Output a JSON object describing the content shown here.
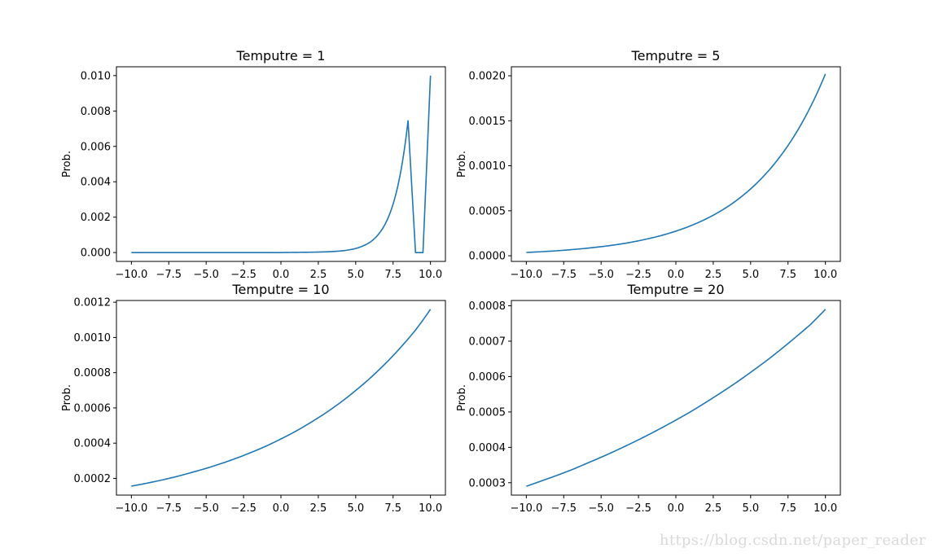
{
  "watermark": "https://blog.csdn.net/paper_reader",
  "chart_data": [
    {
      "type": "line",
      "title": "Temputre = 1",
      "xlabel": "",
      "ylabel": "Prob.",
      "xlim": [
        -11.0,
        11.0
      ],
      "ylim": [
        -0.0005,
        0.0105
      ],
      "xticks": [
        -10.0,
        -7.5,
        -5.0,
        -2.5,
        0.0,
        2.5,
        5.0,
        7.5,
        10.0
      ],
      "xtick_labels": [
        "−10.0",
        "−7.5",
        "−5.0",
        "−2.5",
        "0.0",
        "2.5",
        "5.0",
        "7.5",
        "10.0"
      ],
      "yticks": [
        0.0,
        0.002,
        0.004,
        0.006,
        0.008,
        0.01
      ],
      "ytick_labels": [
        "0.000",
        "0.002",
        "0.004",
        "0.006",
        "0.008",
        "0.010"
      ],
      "grid": false,
      "series": [
        {
          "color": "#1f77b4",
          "x": [
            -10,
            -9,
            -8,
            -7,
            -6,
            -5,
            -4,
            -3,
            -2,
            -1,
            0,
            1,
            2,
            3,
            4,
            5,
            5.5,
            6,
            6.5,
            7,
            7.5,
            8,
            8.5,
            9,
            9.5,
            10
          ],
          "y": [
            0.0,
            0.0,
            0.0,
            0.0,
            0.0,
            0.0,
            0.0,
            0.0,
            0.0,
            0.0,
            0.0,
            1e-05,
            2e-05,
            4e-05,
            9e-05,
            0.00023,
            0.00038,
            0.00061,
            0.00101,
            0.00166,
            0.00274,
            0.00452,
            0.00745,
            0.0,
            0.0,
            0.01
          ]
        }
      ]
    },
    {
      "type": "line",
      "title": "Temputre = 5",
      "xlabel": "",
      "ylabel": "Prob.",
      "xlim": [
        -11.0,
        11.0
      ],
      "ylim": [
        -6.25e-05,
        0.0021
      ],
      "xticks": [
        -10.0,
        -7.5,
        -5.0,
        -2.5,
        0.0,
        2.5,
        5.0,
        7.5,
        10.0
      ],
      "xtick_labels": [
        "−10.0",
        "−7.5",
        "−5.0",
        "−2.5",
        "0.0",
        "2.5",
        "5.0",
        "7.5",
        "10.0"
      ],
      "yticks": [
        0.0,
        0.0005,
        0.001,
        0.0015,
        0.002
      ],
      "ytick_labels": [
        "0.0000",
        "0.0005",
        "0.0010",
        "0.0015",
        "0.0020"
      ],
      "grid": false,
      "series": [
        {
          "color": "#1f77b4",
          "x": [
            -10,
            -9,
            -8,
            -7,
            -6,
            -5,
            -4,
            -3,
            -2,
            -1,
            0,
            1,
            2,
            3,
            4,
            5,
            6,
            7,
            8,
            9,
            10
          ],
          "y": [
            3.7e-05,
            4.5e-05,
            5.5e-05,
            6.8e-05,
            8.3e-05,
            0.000101,
            0.000123,
            0.00015,
            0.000184,
            0.000224,
            0.000274,
            0.000334,
            0.000408,
            0.000498,
            0.000608,
            0.000743,
            0.000908,
            0.001109,
            0.001354,
            0.001654,
            0.00202
          ]
        }
      ]
    },
    {
      "type": "line",
      "title": "Temputre = 10",
      "xlabel": "",
      "ylabel": "Prob.",
      "xlim": [
        -11.0,
        11.0
      ],
      "ylim": [
        0.000105,
        0.00121
      ],
      "xticks": [
        -10.0,
        -7.5,
        -5.0,
        -2.5,
        0.0,
        2.5,
        5.0,
        7.5,
        10.0
      ],
      "xtick_labels": [
        "−10.0",
        "−7.5",
        "−5.0",
        "−2.5",
        "0.0",
        "2.5",
        "5.0",
        "7.5",
        "10.0"
      ],
      "yticks": [
        0.0002,
        0.0004,
        0.0006,
        0.0008,
        0.001,
        0.0012
      ],
      "ytick_labels": [
        "0.0002",
        "0.0004",
        "0.0006",
        "0.0008",
        "0.0010",
        "0.0012"
      ],
      "grid": false,
      "series": [
        {
          "color": "#1f77b4",
          "x": [
            -10,
            -9,
            -8,
            -7,
            -6,
            -5,
            -4,
            -3,
            -2,
            -1,
            0,
            1,
            2,
            3,
            4,
            5,
            6,
            7,
            8,
            9,
            10
          ],
          "y": [
            0.000156,
            0.000172,
            0.00019,
            0.00021,
            0.000233,
            0.000257,
            0.000284,
            0.000314,
            0.000347,
            0.000383,
            0.000424,
            0.000468,
            0.000518,
            0.000572,
            0.000632,
            0.000699,
            0.000772,
            0.000853,
            0.000943,
            0.001042,
            0.00116
          ]
        }
      ]
    },
    {
      "type": "line",
      "title": "Temputre = 20",
      "xlabel": "",
      "ylabel": "Prob.",
      "xlim": [
        -11.0,
        11.0
      ],
      "ylim": [
        0.000265,
        0.000815
      ],
      "xticks": [
        -10.0,
        -7.5,
        -5.0,
        -2.5,
        0.0,
        2.5,
        5.0,
        7.5,
        10.0
      ],
      "xtick_labels": [
        "−10.0",
        "−7.5",
        "−5.0",
        "−2.5",
        "0.0",
        "2.5",
        "5.0",
        "7.5",
        "10.0"
      ],
      "yticks": [
        0.0003,
        0.0004,
        0.0005,
        0.0006,
        0.0007,
        0.0008
      ],
      "ytick_labels": [
        "0.0003",
        "0.0004",
        "0.0005",
        "0.0006",
        "0.0007",
        "0.0008"
      ],
      "grid": false,
      "series": [
        {
          "color": "#1f77b4",
          "x": [
            -10,
            -9,
            -8,
            -7,
            -6,
            -5,
            -4,
            -3,
            -2,
            -1,
            0,
            1,
            2,
            3,
            4,
            5,
            6,
            7,
            8,
            9,
            10
          ],
          "y": [
            0.00029,
            0.000305,
            0.00032,
            0.000336,
            0.000354,
            0.000372,
            0.000391,
            0.000411,
            0.000432,
            0.000454,
            0.000477,
            0.000501,
            0.000527,
            0.000554,
            0.000582,
            0.000612,
            0.000643,
            0.000676,
            0.000711,
            0.000747,
            0.00079
          ]
        }
      ]
    }
  ]
}
